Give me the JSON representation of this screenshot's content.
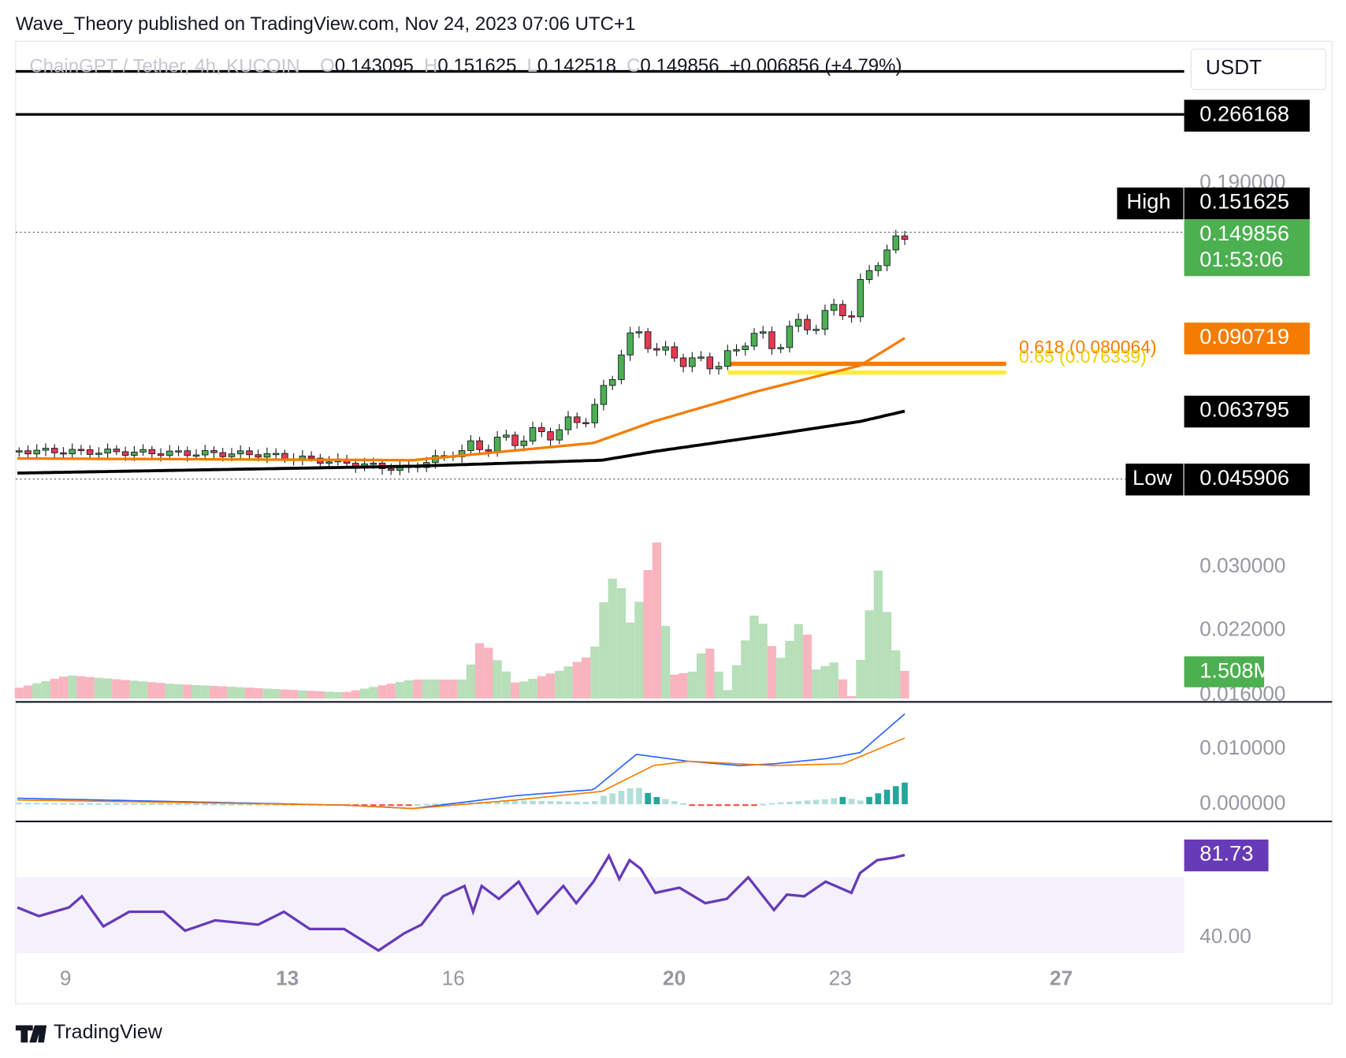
{
  "header": {
    "title": "Wave_Theory published on TradingView.com, Nov 24, 2023 07:06 UTC+1"
  },
  "legend": {
    "symbol": "ChainGPT / Tether, 4h, KUCOIN",
    "items": [
      "O",
      "0.143095",
      "H",
      "0.151625",
      "L",
      "0.142518",
      "C",
      "0.149856",
      "+0.006856 (+4.79%)"
    ]
  },
  "currency": "USDT",
  "price_labels": {
    "top_level": "0.266168",
    "high_tag": "High",
    "high": "0.151625",
    "last": "0.149856",
    "countdown": "01:53:06",
    "ema_fast": "0.090719",
    "ema_slow": "0.063795",
    "low_tag": "Low",
    "low": "0.045906"
  },
  "fib_labels": [
    "0.618 (0.080064)",
    "0.65 (0.076339)"
  ],
  "price_axis": [
    "0.190000"
  ],
  "volume_pane": {
    "axis": [
      "0.030000",
      "0.022000",
      "0.016000"
    ],
    "last": "1.508M"
  },
  "macd_pane": {
    "axis": [
      "0.010000",
      "0.000000"
    ]
  },
  "rsi_pane": {
    "axis": [
      "40.00"
    ],
    "last": "81.73"
  },
  "time_axis": [
    "9",
    "13",
    "16",
    "20",
    "23",
    "27"
  ],
  "footer": {
    "brand": "TradingView"
  }
}
